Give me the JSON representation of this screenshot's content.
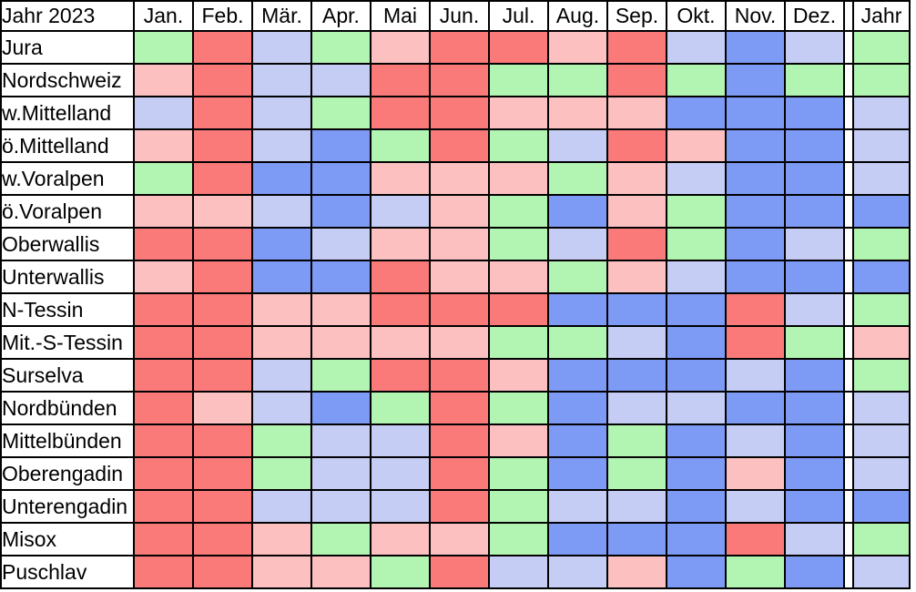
{
  "chart_data": {
    "type": "heatmap",
    "title": "Jahr 2023",
    "x_categories": [
      "Jan.",
      "Feb.",
      "Mär.",
      "Apr.",
      "Mai",
      "Jun.",
      "Jul.",
      "Aug.",
      "Sep.",
      "Okt.",
      "Nov.",
      "Dez.",
      "Jahr"
    ],
    "y_categories": [
      "Jura",
      "Nordschweiz",
      "w.Mittelland",
      "ö.Mittelland",
      "w.Voralpen",
      "ö.Voralpen",
      "Oberwallis",
      "Unterwallis",
      "N-Tessin",
      "Mit.-S-Tessin",
      "Surselva",
      "Nordbünden",
      "Mittelbünden",
      "Oberengadin",
      "Unterengadin",
      "Misox",
      "Puschlav"
    ],
    "palette": {
      "G": "#B2F4B2",
      "R": "#FA7A7A",
      "P": "#FCC0C0",
      "L": "#C5CDF5",
      "B": "#7D9AF4"
    },
    "palette_legend": {
      "G": "light-green",
      "R": "red",
      "P": "light-pink",
      "L": "light-blue",
      "B": "blue"
    },
    "cell_colors": [
      [
        "G",
        "R",
        "L",
        "G",
        "P",
        "R",
        "R",
        "P",
        "R",
        "L",
        "B",
        "L",
        "G"
      ],
      [
        "P",
        "R",
        "L",
        "L",
        "R",
        "R",
        "G",
        "G",
        "R",
        "G",
        "B",
        "G",
        "G"
      ],
      [
        "L",
        "R",
        "L",
        "G",
        "R",
        "R",
        "P",
        "P",
        "P",
        "B",
        "B",
        "B",
        "L"
      ],
      [
        "P",
        "R",
        "L",
        "B",
        "G",
        "R",
        "G",
        "L",
        "R",
        "P",
        "B",
        "B",
        "L"
      ],
      [
        "G",
        "R",
        "B",
        "B",
        "P",
        "P",
        "P",
        "G",
        "P",
        "L",
        "B",
        "B",
        "L"
      ],
      [
        "P",
        "P",
        "L",
        "B",
        "L",
        "P",
        "G",
        "B",
        "P",
        "G",
        "B",
        "B",
        "B"
      ],
      [
        "R",
        "R",
        "B",
        "L",
        "P",
        "P",
        "G",
        "L",
        "R",
        "G",
        "B",
        "L",
        "G"
      ],
      [
        "P",
        "R",
        "B",
        "B",
        "R",
        "P",
        "P",
        "G",
        "P",
        "L",
        "B",
        "B",
        "B"
      ],
      [
        "R",
        "R",
        "P",
        "P",
        "R",
        "R",
        "R",
        "B",
        "B",
        "B",
        "R",
        "L",
        "G"
      ],
      [
        "R",
        "R",
        "P",
        "P",
        "P",
        "P",
        "G",
        "G",
        "L",
        "B",
        "R",
        "G",
        "P"
      ],
      [
        "R",
        "R",
        "L",
        "G",
        "R",
        "R",
        "P",
        "B",
        "B",
        "B",
        "L",
        "B",
        "G"
      ],
      [
        "R",
        "P",
        "L",
        "B",
        "G",
        "R",
        "G",
        "B",
        "L",
        "L",
        "B",
        "B",
        "L"
      ],
      [
        "R",
        "R",
        "G",
        "L",
        "L",
        "R",
        "P",
        "B",
        "G",
        "B",
        "L",
        "B",
        "L"
      ],
      [
        "R",
        "R",
        "G",
        "L",
        "L",
        "R",
        "G",
        "B",
        "G",
        "B",
        "P",
        "B",
        "L"
      ],
      [
        "R",
        "R",
        "L",
        "L",
        "L",
        "R",
        "G",
        "L",
        "L",
        "B",
        "L",
        "B",
        "B"
      ],
      [
        "R",
        "R",
        "P",
        "G",
        "P",
        "P",
        "G",
        "B",
        "B",
        "B",
        "R",
        "L",
        "G"
      ],
      [
        "R",
        "R",
        "P",
        "P",
        "G",
        "R",
        "L",
        "L",
        "P",
        "B",
        "G",
        "B",
        "L"
      ]
    ]
  }
}
